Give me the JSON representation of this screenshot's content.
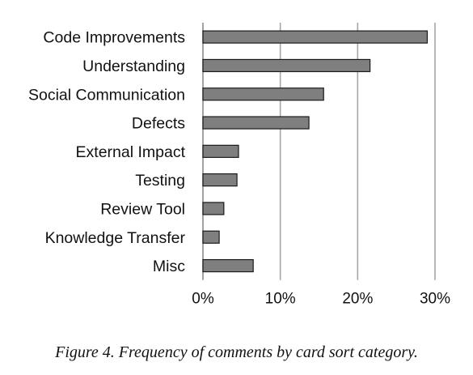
{
  "chart_data": {
    "type": "bar",
    "orientation": "horizontal",
    "categories": [
      "Code Improvements",
      "Understanding",
      "Social Communication",
      "Defects",
      "External Impact",
      "Testing",
      "Review Tool",
      "Knowledge Transfer",
      "Misc"
    ],
    "values": [
      29.0,
      21.6,
      15.6,
      13.7,
      4.6,
      4.4,
      2.7,
      2.1,
      6.5
    ],
    "value_unit": "%",
    "xlim": [
      0,
      30
    ],
    "xticks": [
      0,
      10,
      20,
      30
    ],
    "xtick_labels": [
      "0%",
      "10%",
      "20%",
      "30%"
    ],
    "grid": "vertical",
    "bar_color": "#7f7f7f",
    "bar_edge_color": "#1a1a1a",
    "grid_color": "#a6a6a6",
    "title": "",
    "xlabel": "",
    "ylabel": ""
  },
  "caption": "Figure 4. Frequency of comments by card sort category."
}
